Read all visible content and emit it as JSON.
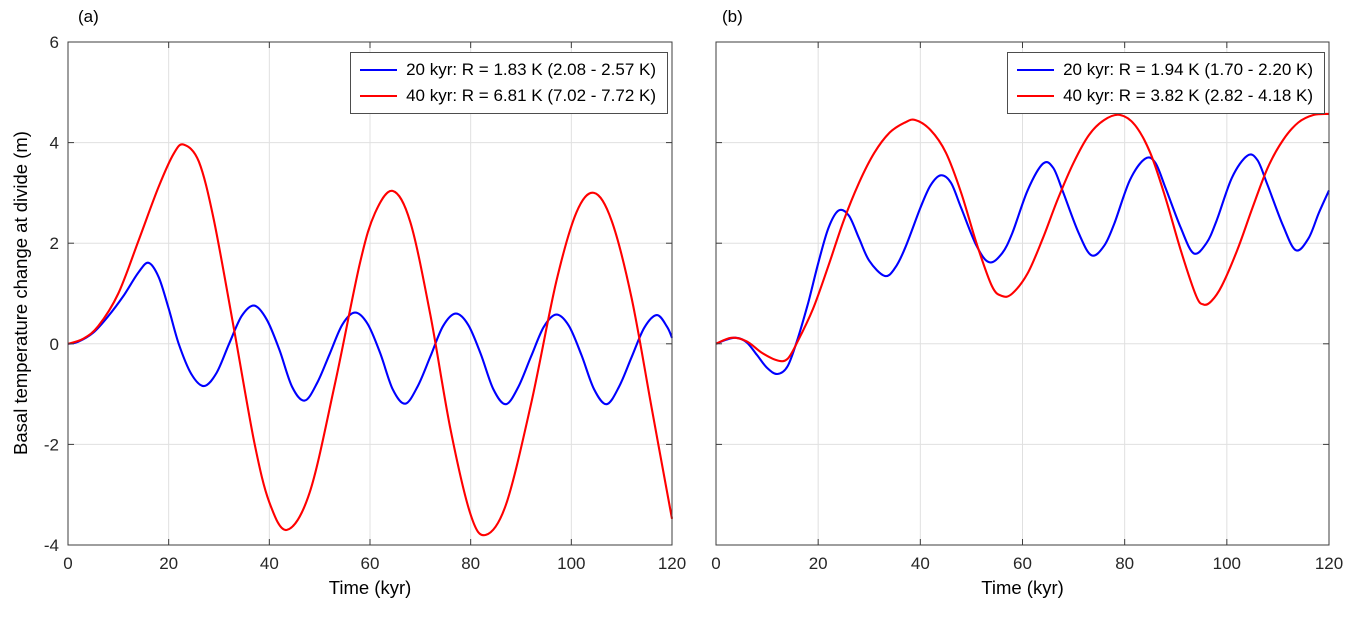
{
  "chart_data": [
    {
      "type": "line",
      "panel_label": "(a)",
      "xlabel": "Time (kyr)",
      "ylabel": "Basal temperature change at divide (m)",
      "xlim": [
        0,
        120
      ],
      "ylim": [
        -4,
        6
      ],
      "xticks": [
        0,
        20,
        40,
        60,
        80,
        100,
        120
      ],
      "yticks": [
        -4,
        -2,
        0,
        2,
        4,
        6
      ],
      "show_ytick_labels": true,
      "grid": true,
      "legend_position": "top-right",
      "series": [
        {
          "name": "20 kyr",
          "color": "#0000ff",
          "legend_label": "20 kyr: R = 1.83 K (2.08 - 2.57 K)",
          "points": [
            [
              0,
              0
            ],
            [
              2,
              0.04
            ],
            [
              5,
              0.22
            ],
            [
              8,
              0.55
            ],
            [
              11,
              0.95
            ],
            [
              14,
              1.42
            ],
            [
              16,
              1.61
            ],
            [
              18,
              1.33
            ],
            [
              20,
              0.7
            ],
            [
              22,
              0
            ],
            [
              24.5,
              -0.6
            ],
            [
              27,
              -0.84
            ],
            [
              29.5,
              -0.58
            ],
            [
              32,
              0
            ],
            [
              34.5,
              0.55
            ],
            [
              37,
              0.76
            ],
            [
              39.5,
              0.48
            ],
            [
              42,
              -0.12
            ],
            [
              44.5,
              -0.85
            ],
            [
              47,
              -1.13
            ],
            [
              49.5,
              -0.78
            ],
            [
              52,
              -0.2
            ],
            [
              54.5,
              0.38
            ],
            [
              57,
              0.62
            ],
            [
              59.5,
              0.4
            ],
            [
              62,
              -0.18
            ],
            [
              64.5,
              -0.9
            ],
            [
              67,
              -1.19
            ],
            [
              69.5,
              -0.84
            ],
            [
              72,
              -0.25
            ],
            [
              74.5,
              0.35
            ],
            [
              77,
              0.6
            ],
            [
              79.5,
              0.38
            ],
            [
              82,
              -0.2
            ],
            [
              84.5,
              -0.9
            ],
            [
              87,
              -1.2
            ],
            [
              89.5,
              -0.85
            ],
            [
              92,
              -0.25
            ],
            [
              94.5,
              0.33
            ],
            [
              97,
              0.58
            ],
            [
              99.5,
              0.36
            ],
            [
              102,
              -0.22
            ],
            [
              104.5,
              -0.9
            ],
            [
              107,
              -1.2
            ],
            [
              109.5,
              -0.85
            ],
            [
              112,
              -0.26
            ],
            [
              114.5,
              0.32
            ],
            [
              117,
              0.57
            ],
            [
              119,
              0.34
            ],
            [
              120,
              0.12
            ]
          ]
        },
        {
          "name": "40 kyr",
          "color": "#ff0000",
          "legend_label": "40 kyr: R = 6.81 K (7.02 - 7.72 K)",
          "points": [
            [
              0,
              0
            ],
            [
              3,
              0.1
            ],
            [
              6,
              0.35
            ],
            [
              10,
              1.0
            ],
            [
              14,
              2.05
            ],
            [
              18,
              3.12
            ],
            [
              21,
              3.78
            ],
            [
              23,
              3.96
            ],
            [
              26,
              3.62
            ],
            [
              29,
              2.45
            ],
            [
              33,
              0.28
            ],
            [
              37,
              -1.95
            ],
            [
              40,
              -3.15
            ],
            [
              43.5,
              -3.7
            ],
            [
              48,
              -2.96
            ],
            [
              53,
              -0.81
            ],
            [
              58,
              1.6
            ],
            [
              61,
              2.6
            ],
            [
              64.5,
              3.04
            ],
            [
              68,
              2.42
            ],
            [
              72,
              0.57
            ],
            [
              76,
              -1.7
            ],
            [
              80,
              -3.4
            ],
            [
              83,
              -3.8
            ],
            [
              87,
              -3.2
            ],
            [
              92,
              -1.19
            ],
            [
              97,
              1.23
            ],
            [
              101,
              2.61
            ],
            [
              104.5,
              3.0
            ],
            [
              108,
              2.45
            ],
            [
              112,
              0.9
            ],
            [
              116,
              -1.3
            ],
            [
              120,
              -3.48
            ]
          ]
        }
      ]
    },
    {
      "type": "line",
      "panel_label": "(b)",
      "xlabel": "Time (kyr)",
      "xlim": [
        0,
        120
      ],
      "ylim": [
        -4,
        6
      ],
      "xticks": [
        0,
        20,
        40,
        60,
        80,
        100,
        120
      ],
      "yticks": [
        -4,
        -2,
        0,
        2,
        4,
        6
      ],
      "show_ytick_labels": false,
      "grid": true,
      "legend_position": "top-right",
      "series": [
        {
          "name": "20 kyr",
          "color": "#0000ff",
          "legend_label": "20 kyr: R = 1.94 K (1.70 - 2.20 K)",
          "points": [
            [
              0,
              0
            ],
            [
              2,
              0.08
            ],
            [
              4,
              0.12
            ],
            [
              6,
              0.03
            ],
            [
              8,
              -0.22
            ],
            [
              10,
              -0.48
            ],
            [
              12,
              -0.6
            ],
            [
              14,
              -0.45
            ],
            [
              16,
              0.1
            ],
            [
              18,
              0.8
            ],
            [
              20,
              1.6
            ],
            [
              22,
              2.3
            ],
            [
              24,
              2.65
            ],
            [
              26,
              2.55
            ],
            [
              28,
              2.1
            ],
            [
              30,
              1.65
            ],
            [
              33,
              1.35
            ],
            [
              35,
              1.5
            ],
            [
              37,
              1.9
            ],
            [
              40,
              2.7
            ],
            [
              42,
              3.15
            ],
            [
              44,
              3.35
            ],
            [
              46,
              3.2
            ],
            [
              48,
              2.7
            ],
            [
              51,
              1.95
            ],
            [
              53.5,
              1.62
            ],
            [
              56,
              1.8
            ],
            [
              58,
              2.2
            ],
            [
              61,
              3.05
            ],
            [
              64,
              3.58
            ],
            [
              66,
              3.5
            ],
            [
              68,
              3.0
            ],
            [
              71,
              2.2
            ],
            [
              73.5,
              1.76
            ],
            [
              76,
              1.95
            ],
            [
              78,
              2.4
            ],
            [
              81,
              3.25
            ],
            [
              84,
              3.68
            ],
            [
              86,
              3.6
            ],
            [
              88,
              3.1
            ],
            [
              91,
              2.3
            ],
            [
              93.5,
              1.8
            ],
            [
              96,
              2.0
            ],
            [
              98,
              2.45
            ],
            [
              101,
              3.3
            ],
            [
              104,
              3.74
            ],
            [
              106,
              3.65
            ],
            [
              108,
              3.15
            ],
            [
              111,
              2.35
            ],
            [
              113.5,
              1.86
            ],
            [
              116,
              2.1
            ],
            [
              118,
              2.6
            ],
            [
              120,
              3.05
            ]
          ]
        },
        {
          "name": "40 kyr",
          "color": "#ff0000",
          "legend_label": "40 kyr: R = 3.82 K (2.82 - 4.18 K)",
          "points": [
            [
              0,
              0
            ],
            [
              3,
              0.12
            ],
            [
              6,
              0.05
            ],
            [
              9,
              -0.18
            ],
            [
              12,
              -0.33
            ],
            [
              14,
              -0.3
            ],
            [
              16,
              0.05
            ],
            [
              19,
              0.7
            ],
            [
              22,
              1.55
            ],
            [
              25,
              2.45
            ],
            [
              28,
              3.2
            ],
            [
              31,
              3.8
            ],
            [
              34,
              4.2
            ],
            [
              37,
              4.4
            ],
            [
              39,
              4.45
            ],
            [
              42,
              4.25
            ],
            [
              45,
              3.8
            ],
            [
              48,
              3.0
            ],
            [
              51,
              2.0
            ],
            [
              54,
              1.15
            ],
            [
              56,
              0.95
            ],
            [
              58,
              1.0
            ],
            [
              61,
              1.4
            ],
            [
              64,
              2.1
            ],
            [
              67,
              2.9
            ],
            [
              70,
              3.6
            ],
            [
              73,
              4.15
            ],
            [
              76,
              4.45
            ],
            [
              79,
              4.55
            ],
            [
              82,
              4.35
            ],
            [
              85,
              3.8
            ],
            [
              88,
              2.9
            ],
            [
              91,
              1.85
            ],
            [
              94,
              0.95
            ],
            [
              95.5,
              0.78
            ],
            [
              97,
              0.85
            ],
            [
              99,
              1.15
            ],
            [
              102,
              1.85
            ],
            [
              105,
              2.7
            ],
            [
              108,
              3.5
            ],
            [
              111,
              4.05
            ],
            [
              114,
              4.4
            ],
            [
              117,
              4.55
            ],
            [
              120,
              4.57
            ]
          ]
        }
      ]
    }
  ]
}
